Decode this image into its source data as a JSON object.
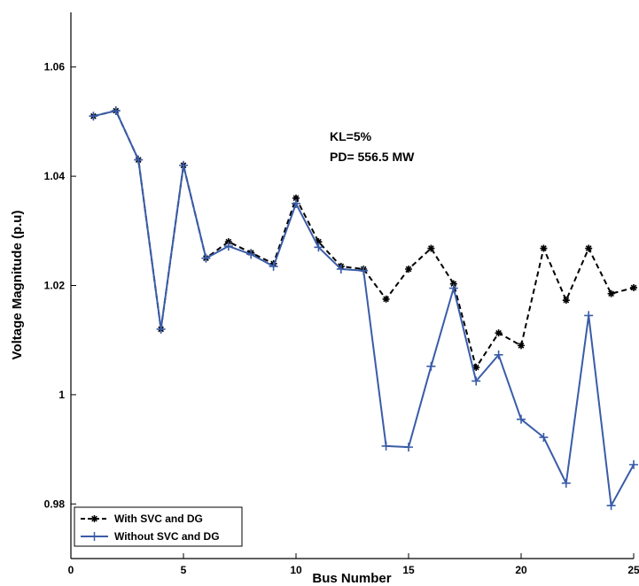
{
  "chart_data": {
    "type": "line",
    "xlabel": "Bus Number",
    "ylabel": "Voltage Magnitude (p.u)",
    "xlim": [
      0,
      25
    ],
    "ylim": [
      0.97,
      1.07
    ],
    "xticks": [
      0,
      5,
      10,
      15,
      20,
      25
    ],
    "yticks": [
      0.98,
      1,
      1.02,
      1.04,
      1.06
    ],
    "xtick_labels": [
      "0",
      "5",
      "10",
      "15",
      "20",
      "25"
    ],
    "ytick_labels": [
      "0.98",
      "1",
      "1.02",
      "1.04",
      "1.06"
    ],
    "grid": false,
    "legend_position": "bottom-left",
    "annotations": [
      "KL=5%",
      "PD= 556.5 MW"
    ],
    "x": [
      1,
      2,
      3,
      4,
      5,
      6,
      7,
      8,
      9,
      10,
      11,
      12,
      13,
      14,
      15,
      16,
      17,
      18,
      19,
      20,
      21,
      22,
      23,
      24,
      25
    ],
    "series": [
      {
        "name": "With SVC and DG",
        "color": "#000000",
        "style": "dashed",
        "marker": "*",
        "values": [
          1.051,
          1.052,
          1.043,
          1.012,
          1.042,
          1.025,
          1.028,
          1.026,
          1.024,
          1.036,
          1.028,
          1.0235,
          1.023,
          1.0175,
          1.023,
          1.0268,
          1.0203,
          1.005,
          1.0113,
          1.009,
          1.0268,
          1.0173,
          1.0268,
          1.0185,
          1.0196
        ]
      },
      {
        "name": "Without SVC and DG",
        "color": "#3a5ca8",
        "style": "solid",
        "marker": "+",
        "values": [
          1.051,
          1.052,
          1.043,
          1.012,
          1.042,
          1.025,
          1.0272,
          1.0257,
          1.0235,
          1.035,
          1.027,
          1.023,
          1.0227,
          0.9906,
          0.9904,
          1.0052,
          1.0195,
          1.0025,
          1.0073,
          0.9955,
          0.9922,
          0.9838,
          1.0145,
          0.9797,
          0.9872
        ]
      }
    ]
  }
}
